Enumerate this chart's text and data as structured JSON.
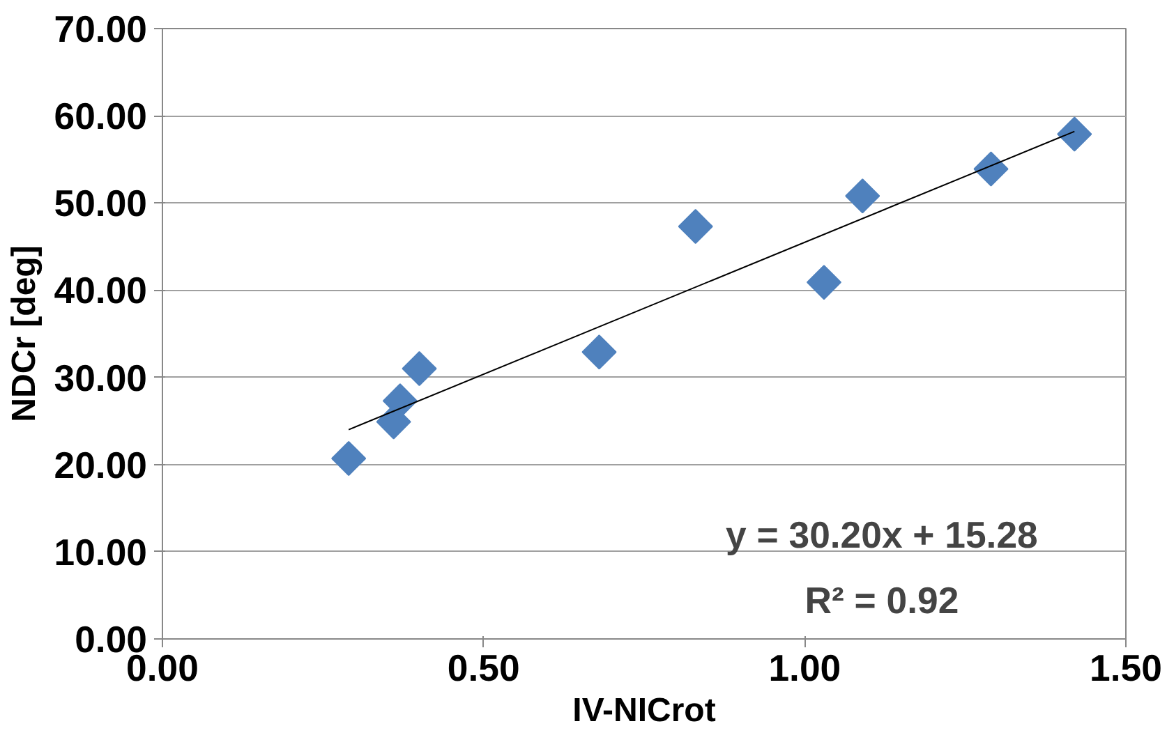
{
  "chart_data": {
    "type": "scatter",
    "xlabel": "IV-NICrot",
    "ylabel": "NDCr [deg]",
    "series": [
      {
        "color": "#4f81bd",
        "marker": "diamond",
        "x": [
          0.29,
          0.36,
          0.37,
          0.4,
          0.68,
          0.83,
          1.03,
          1.09,
          1.29,
          1.42
        ],
        "values": [
          20.7,
          24.9,
          27.3,
          31.0,
          32.9,
          47.3,
          40.9,
          50.8,
          53.9,
          57.9
        ]
      },
      {
        "type": "line",
        "color": "#000000",
        "x": [
          0.29,
          1.42
        ],
        "values": [
          24.0,
          58.2
        ]
      }
    ],
    "annotations": [
      "y = 30.20x + 15.28",
      "R² = 0.92"
    ],
    "xlim": [
      0,
      1.5
    ],
    "xticks": [
      {
        "value": 0,
        "label": "0.00"
      },
      {
        "value": 0.5,
        "label": "0.50"
      },
      {
        "value": 1,
        "label": "1.00"
      },
      {
        "value": 1.5,
        "label": "1.50"
      }
    ],
    "ylim": [
      0,
      70
    ],
    "yticks": [
      {
        "value": 0,
        "label": "0.00"
      },
      {
        "value": 10,
        "label": "10.00"
      },
      {
        "value": 20,
        "label": "20.00"
      },
      {
        "value": 30,
        "label": "30.00"
      },
      {
        "value": 40,
        "label": "40.00"
      },
      {
        "value": 50,
        "label": "50.00"
      },
      {
        "value": 60,
        "label": "60.00"
      },
      {
        "value": 70,
        "label": "70.00"
      }
    ],
    "grid": "y"
  }
}
